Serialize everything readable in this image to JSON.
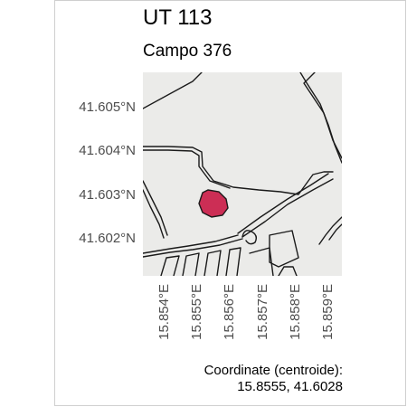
{
  "header": {
    "title": "UT 113",
    "subtitle": "Campo 376"
  },
  "map": {
    "background_color": "#ebebe9",
    "road_color": "#1a1a1a",
    "feature_fill_color": "#cc2e55",
    "y_ticks": [
      "41.605°N",
      "41.604°N",
      "41.603°N",
      "41.602°N"
    ],
    "x_ticks": [
      "15.854°E",
      "15.855°E",
      "15.856°E",
      "15.857°E",
      "15.858°E",
      "15.859°E"
    ],
    "feature": {
      "name": "UT 113",
      "centroid_lon": 15.8555,
      "centroid_lat": 41.6028
    }
  },
  "caption": {
    "line1": "Coordinate (centroide):",
    "line2": "15.8555, 41.6028"
  }
}
